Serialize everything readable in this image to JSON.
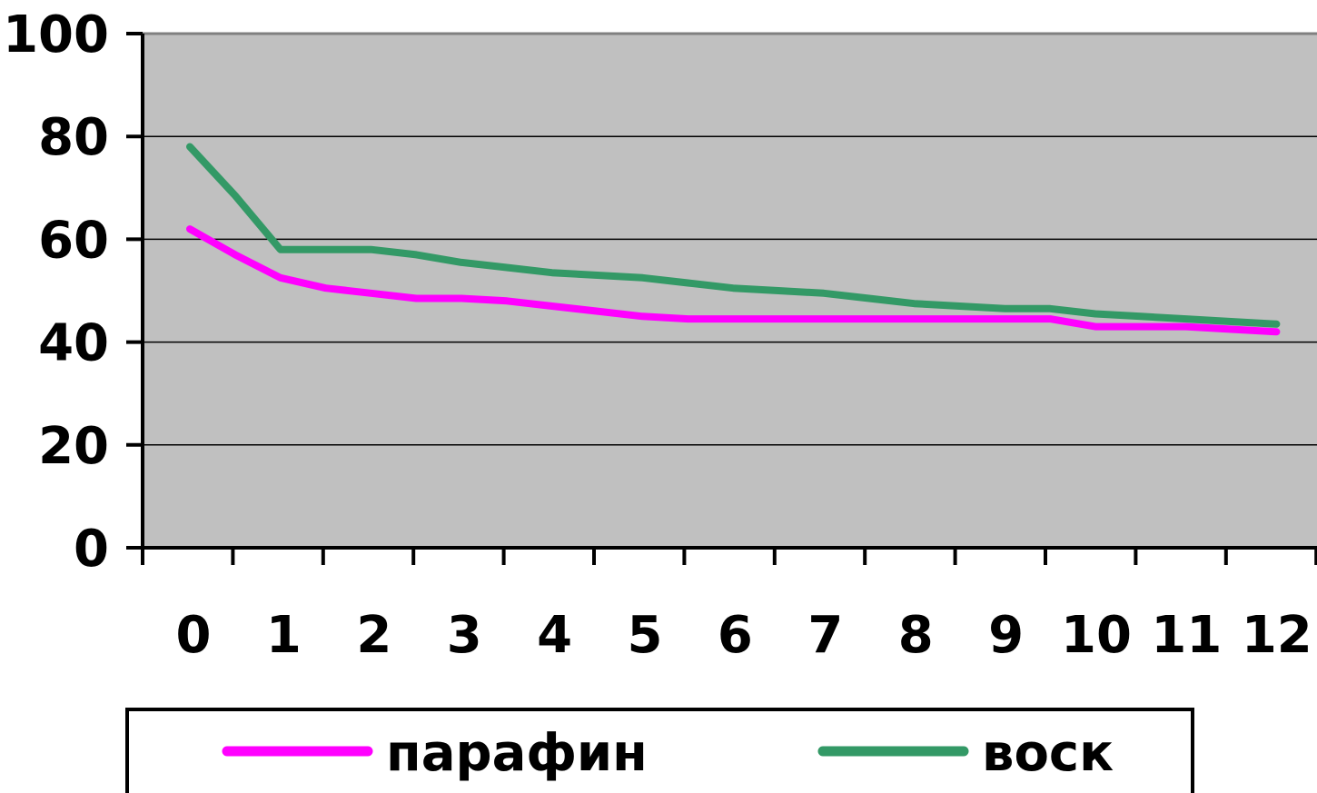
{
  "chart_data": {
    "type": "line",
    "title": "",
    "xlabel": "",
    "ylabel": "",
    "categories": [
      "0",
      "1",
      "2",
      "3",
      "4",
      "5",
      "6",
      "7",
      "8",
      "9",
      "10",
      "11",
      "12"
    ],
    "x": [
      0,
      0.5,
      1,
      1.5,
      2,
      2.5,
      3,
      3.5,
      4,
      4.5,
      5,
      5.5,
      6,
      6.5,
      7,
      7.5,
      8,
      8.5,
      9,
      9.5,
      10,
      10.5,
      11,
      11.5,
      12
    ],
    "ylim": [
      0,
      100
    ],
    "yticks": [
      "0",
      "20",
      "40",
      "60",
      "80",
      "100"
    ],
    "grid": true,
    "plot_background": "#c0c0c0",
    "legend_position": "bottom",
    "series": [
      {
        "name": "парафин",
        "color": "#ff00ff",
        "values": [
          62,
          57,
          52.5,
          50.5,
          49.5,
          48.5,
          48.5,
          48,
          47,
          46,
          45,
          44.5,
          44.5,
          44.5,
          44.5,
          44.5,
          44.5,
          44.5,
          44.5,
          44.5,
          43,
          43,
          43,
          42.5,
          42
        ]
      },
      {
        "name": "воск",
        "color": "#339966",
        "values": [
          78,
          68.5,
          58,
          58,
          58,
          57,
          55.5,
          54.5,
          53.5,
          53,
          52.5,
          51.5,
          50.5,
          50,
          49.5,
          48.5,
          47.5,
          47,
          46.5,
          46.5,
          45.5,
          45,
          44.5,
          44,
          43.5
        ]
      }
    ]
  }
}
